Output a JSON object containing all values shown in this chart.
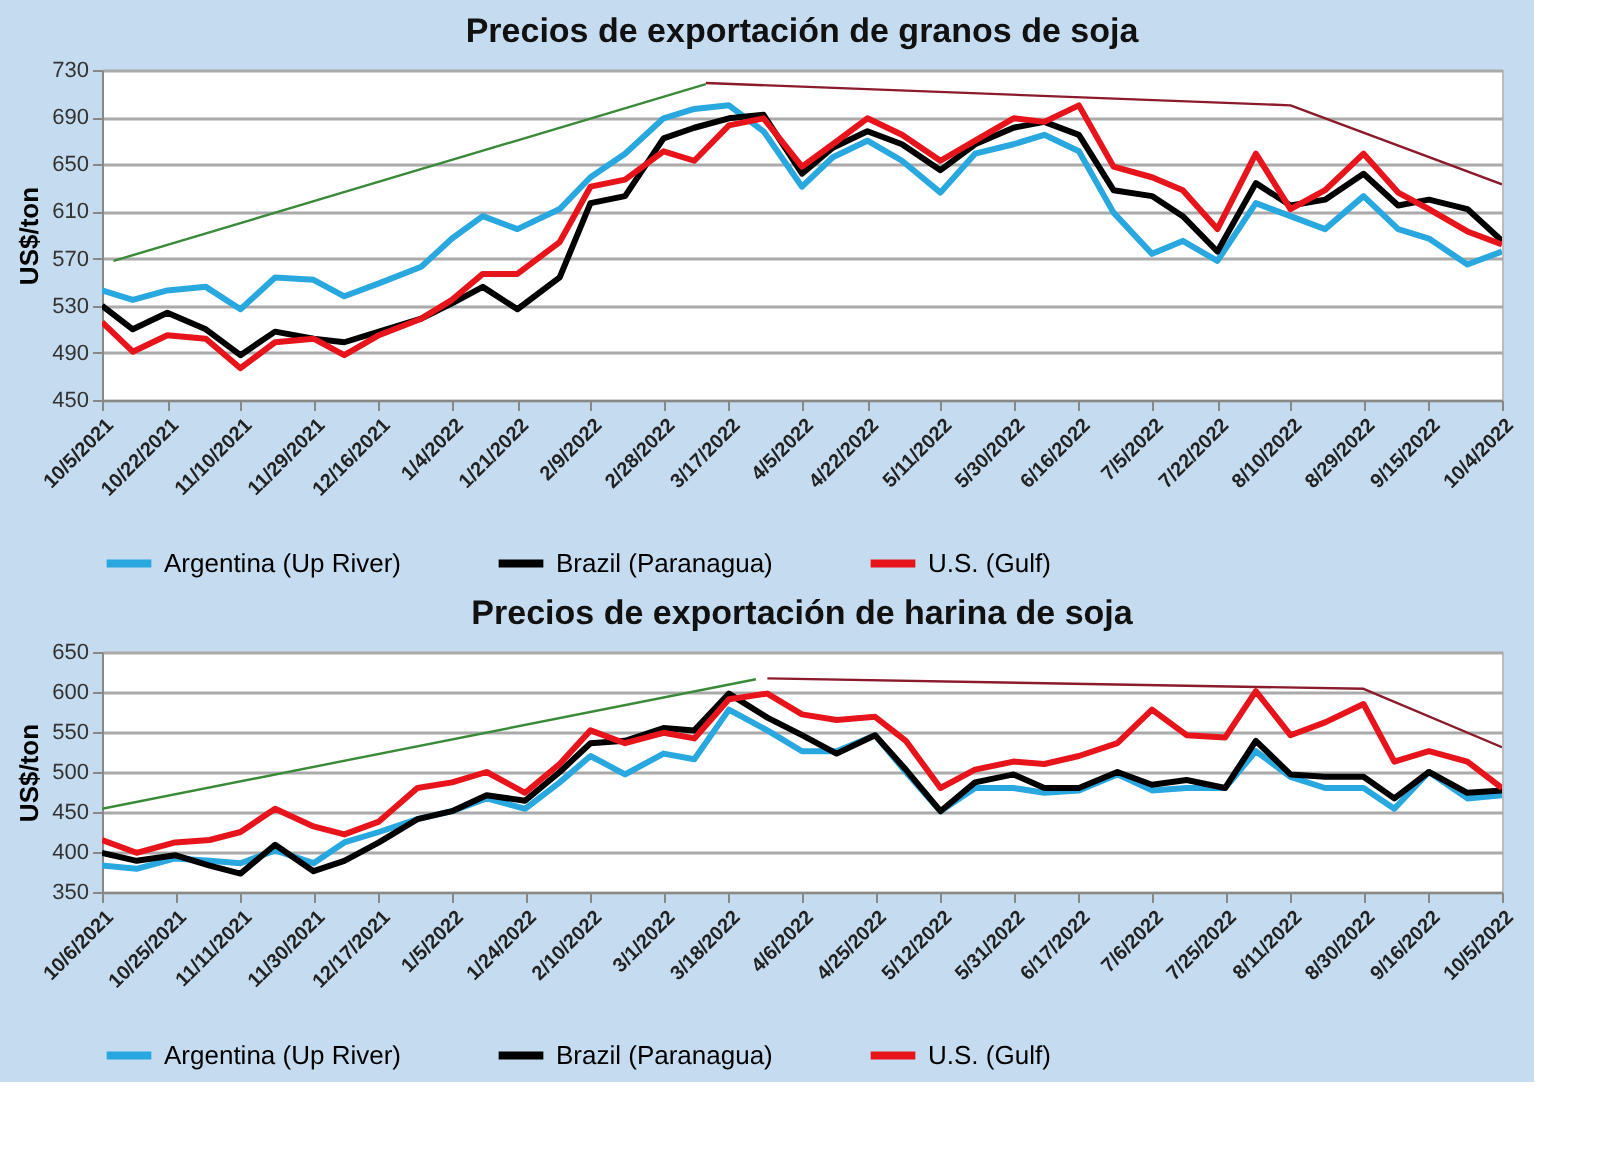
{
  "chart_data": [
    {
      "type": "line",
      "title": "Precios de exportación de granos de soja",
      "ylabel": "US$/ton",
      "xlim": [
        "2021-10-05",
        "2022-10-04"
      ],
      "ylim": [
        450,
        730
      ],
      "yticks": [
        450,
        490,
        530,
        570,
        610,
        650,
        690,
        730
      ],
      "xticks": [
        {
          "value": "2021-10-05",
          "label": "10/5/2021"
        },
        {
          "value": "2021-10-22",
          "label": "10/22/2021"
        },
        {
          "value": "2021-11-10",
          "label": "11/10/2021"
        },
        {
          "value": "2021-11-29",
          "label": "11/29/2021"
        },
        {
          "value": "2021-12-16",
          "label": "12/16/2021"
        },
        {
          "value": "2022-01-04",
          "label": "1/4/2022"
        },
        {
          "value": "2022-01-21",
          "label": "1/21/2022"
        },
        {
          "value": "2022-02-09",
          "label": "2/9/2022"
        },
        {
          "value": "2022-02-28",
          "label": "2/28/2022"
        },
        {
          "value": "2022-03-17",
          "label": "3/17/2022"
        },
        {
          "value": "2022-04-05",
          "label": "4/5/2022"
        },
        {
          "value": "2022-04-22",
          "label": "4/22/2022"
        },
        {
          "value": "2022-05-11",
          "label": "5/11/2022"
        },
        {
          "value": "2022-05-30",
          "label": "5/30/2022"
        },
        {
          "value": "2022-06-16",
          "label": "6/16/2022"
        },
        {
          "value": "2022-07-05",
          "label": "7/5/2022"
        },
        {
          "value": "2022-07-22",
          "label": "7/22/2022"
        },
        {
          "value": "2022-08-10",
          "label": "8/10/2022"
        },
        {
          "value": "2022-08-29",
          "label": "8/29/2022"
        },
        {
          "value": "2022-09-15",
          "label": "9/15/2022"
        },
        {
          "value": "2022-10-04",
          "label": "10/4/2022"
        }
      ],
      "grid": "y",
      "legend": "bottom",
      "series": [
        {
          "name": "Argentina (Up River)",
          "color": "#29a8e0",
          "x": [
            "2021-10-05",
            "2021-10-13",
            "2021-10-22",
            "2021-11-01",
            "2021-11-10",
            "2021-11-19",
            "2021-11-29",
            "2021-12-07",
            "2021-12-16",
            "2021-12-27",
            "2022-01-04",
            "2022-01-12",
            "2022-01-21",
            "2022-02-01",
            "2022-02-09",
            "2022-02-18",
            "2022-02-28",
            "2022-03-08",
            "2022-03-17",
            "2022-03-26",
            "2022-04-05",
            "2022-04-13",
            "2022-04-22",
            "2022-05-01",
            "2022-05-11",
            "2022-05-20",
            "2022-05-30",
            "2022-06-07",
            "2022-06-16",
            "2022-06-25",
            "2022-07-05",
            "2022-07-13",
            "2022-07-22",
            "2022-08-01",
            "2022-08-10",
            "2022-08-19",
            "2022-08-29",
            "2022-09-07",
            "2022-09-15",
            "2022-09-25",
            "2022-10-04"
          ],
          "values": [
            543,
            535,
            543,
            546,
            527,
            554,
            552,
            538,
            549,
            563,
            587,
            606,
            595,
            612,
            639,
            659,
            689,
            697,
            700,
            678,
            631,
            656,
            670,
            653,
            626,
            659,
            667,
            675,
            661,
            609,
            574,
            585,
            568,
            617,
            606,
            595,
            623,
            595,
            587,
            565,
            576
          ]
        },
        {
          "name": "Brazil (Paranagua)",
          "color": "#000000",
          "x": [
            "2021-10-05",
            "2021-10-13",
            "2021-10-22",
            "2021-11-01",
            "2021-11-10",
            "2021-11-19",
            "2021-11-29",
            "2021-12-07",
            "2021-12-16",
            "2021-12-27",
            "2022-01-04",
            "2022-01-12",
            "2022-01-21",
            "2022-02-01",
            "2022-02-09",
            "2022-02-18",
            "2022-02-28",
            "2022-03-08",
            "2022-03-17",
            "2022-03-26",
            "2022-04-05",
            "2022-04-13",
            "2022-04-22",
            "2022-05-01",
            "2022-05-11",
            "2022-05-20",
            "2022-05-30",
            "2022-06-07",
            "2022-06-16",
            "2022-06-25",
            "2022-07-05",
            "2022-07-13",
            "2022-07-22",
            "2022-08-01",
            "2022-08-10",
            "2022-08-19",
            "2022-08-29",
            "2022-09-07",
            "2022-09-15",
            "2022-09-25",
            "2022-10-04"
          ],
          "values": [
            530,
            510,
            524,
            510,
            488,
            508,
            502,
            499,
            508,
            519,
            532,
            546,
            527,
            554,
            617,
            623,
            672,
            681,
            689,
            692,
            642,
            664,
            678,
            667,
            645,
            667,
            681,
            686,
            675,
            628,
            623,
            606,
            576,
            634,
            615,
            620,
            642,
            615,
            620,
            612,
            585
          ]
        },
        {
          "name": "U.S. (Gulf)",
          "color": "#e8141c",
          "x": [
            "2021-10-05",
            "2021-10-13",
            "2021-10-22",
            "2021-11-01",
            "2021-11-10",
            "2021-11-19",
            "2021-11-29",
            "2021-12-07",
            "2021-12-16",
            "2021-12-27",
            "2022-01-04",
            "2022-01-12",
            "2022-01-21",
            "2022-02-01",
            "2022-02-09",
            "2022-02-18",
            "2022-02-28",
            "2022-03-08",
            "2022-03-17",
            "2022-03-26",
            "2022-04-05",
            "2022-04-13",
            "2022-04-22",
            "2022-05-01",
            "2022-05-11",
            "2022-05-20",
            "2022-05-30",
            "2022-06-07",
            "2022-06-16",
            "2022-06-25",
            "2022-07-05",
            "2022-07-13",
            "2022-07-22",
            "2022-08-01",
            "2022-08-10",
            "2022-08-19",
            "2022-08-29",
            "2022-09-07",
            "2022-09-15",
            "2022-09-25",
            "2022-10-04"
          ],
          "values": [
            516,
            491,
            505,
            502,
            477,
            499,
            502,
            488,
            505,
            519,
            535,
            557,
            557,
            584,
            631,
            637,
            661,
            653,
            683,
            689,
            648,
            667,
            689,
            675,
            653,
            670,
            689,
            686,
            700,
            648,
            639,
            628,
            595,
            659,
            612,
            628,
            659,
            626,
            612,
            593,
            582
          ]
        },
        {
          "type": "line",
          "color": "#3a8a3a",
          "x": [
            "2021-10-08",
            "2022-03-11"
          ],
          "values": [
            568,
            718
          ]
        },
        {
          "type": "line",
          "color": "#8b1a2b",
          "x": [
            "2022-03-11",
            "2022-08-10",
            "2022-10-04"
          ],
          "values": [
            719,
            700,
            633
          ]
        }
      ]
    },
    {
      "type": "line",
      "title": "Precios de exportación de harina de soja",
      "ylabel": "US$/ton",
      "xlim": [
        "2021-10-06",
        "2022-10-05"
      ],
      "ylim": [
        350,
        650
      ],
      "yticks": [
        350,
        400,
        450,
        500,
        550,
        600,
        650
      ],
      "xticks": [
        {
          "value": "2021-10-06",
          "label": "10/6/2021"
        },
        {
          "value": "2021-10-25",
          "label": "10/25/2021"
        },
        {
          "value": "2021-11-11",
          "label": "11/11/2021"
        },
        {
          "value": "2021-11-30",
          "label": "11/30/2021"
        },
        {
          "value": "2021-12-17",
          "label": "12/17/2021"
        },
        {
          "value": "2022-01-05",
          "label": "1/5/2022"
        },
        {
          "value": "2022-01-24",
          "label": "1/24/2022"
        },
        {
          "value": "2022-02-10",
          "label": "2/10/2022"
        },
        {
          "value": "2022-03-01",
          "label": "3/1/2022"
        },
        {
          "value": "2022-03-18",
          "label": "3/18/2022"
        },
        {
          "value": "2022-04-06",
          "label": "4/6/2022"
        },
        {
          "value": "2022-04-25",
          "label": "4/25/2022"
        },
        {
          "value": "2022-05-12",
          "label": "5/12/2022"
        },
        {
          "value": "2022-05-31",
          "label": "5/31/2022"
        },
        {
          "value": "2022-06-17",
          "label": "6/17/2022"
        },
        {
          "value": "2022-07-06",
          "label": "7/6/2022"
        },
        {
          "value": "2022-07-25",
          "label": "7/25/2022"
        },
        {
          "value": "2022-08-11",
          "label": "8/11/2022"
        },
        {
          "value": "2022-08-30",
          "label": "8/30/2022"
        },
        {
          "value": "2022-09-16",
          "label": "9/16/2022"
        },
        {
          "value": "2022-10-05",
          "label": "10/5/2022"
        }
      ],
      "grid": "y",
      "legend": "bottom",
      "series": [
        {
          "name": "Argentina (Up River)",
          "color": "#29a8e0",
          "x": [
            "2021-10-06",
            "2021-10-15",
            "2021-10-25",
            "2021-11-03",
            "2021-11-11",
            "2021-11-20",
            "2021-11-30",
            "2021-12-08",
            "2021-12-17",
            "2021-12-27",
            "2022-01-05",
            "2022-01-14",
            "2022-01-24",
            "2022-02-02",
            "2022-02-10",
            "2022-02-19",
            "2022-03-01",
            "2022-03-09",
            "2022-03-18",
            "2022-03-28",
            "2022-04-06",
            "2022-04-15",
            "2022-04-25",
            "2022-05-03",
            "2022-05-12",
            "2022-05-21",
            "2022-05-31",
            "2022-06-08",
            "2022-06-17",
            "2022-06-27",
            "2022-07-06",
            "2022-07-15",
            "2022-07-25",
            "2022-08-02",
            "2022-08-11",
            "2022-08-20",
            "2022-08-30",
            "2022-09-07",
            "2022-09-16",
            "2022-09-26",
            "2022-10-05"
          ],
          "values": [
            383,
            379,
            392,
            389,
            386,
            402,
            386,
            412,
            425,
            441,
            451,
            467,
            454,
            487,
            520,
            497,
            523,
            516,
            578,
            552,
            526,
            526,
            546,
            500,
            451,
            480,
            480,
            474,
            477,
            497,
            477,
            480,
            480,
            526,
            494,
            480,
            480,
            454,
            500,
            467,
            471
          ]
        },
        {
          "name": "Brazil (Paranagua)",
          "color": "#000000",
          "x": [
            "2021-10-06",
            "2021-10-15",
            "2021-10-25",
            "2021-11-03",
            "2021-11-11",
            "2021-11-20",
            "2021-11-30",
            "2021-12-08",
            "2021-12-17",
            "2021-12-27",
            "2022-01-05",
            "2022-01-14",
            "2022-01-24",
            "2022-02-02",
            "2022-02-10",
            "2022-02-19",
            "2022-03-01",
            "2022-03-09",
            "2022-03-18",
            "2022-03-28",
            "2022-04-06",
            "2022-04-15",
            "2022-04-25",
            "2022-05-03",
            "2022-05-12",
            "2022-05-21",
            "2022-05-31",
            "2022-06-08",
            "2022-06-17",
            "2022-06-27",
            "2022-07-06",
            "2022-07-15",
            "2022-07-25",
            "2022-08-02",
            "2022-08-11",
            "2022-08-20",
            "2022-08-30",
            "2022-09-07",
            "2022-09-16",
            "2022-09-26",
            "2022-10-05"
          ],
          "values": [
            399,
            389,
            396,
            383,
            373,
            409,
            376,
            389,
            412,
            441,
            451,
            471,
            464,
            500,
            536,
            539,
            555,
            552,
            598,
            568,
            546,
            523,
            546,
            503,
            451,
            487,
            497,
            480,
            480,
            500,
            484,
            490,
            480,
            539,
            497,
            494,
            494,
            467,
            500,
            474,
            477
          ]
        },
        {
          "name": "U.S. (Gulf)",
          "color": "#e8141c",
          "x": [
            "2021-10-06",
            "2021-10-15",
            "2021-10-25",
            "2021-11-03",
            "2021-11-11",
            "2021-11-20",
            "2021-11-30",
            "2021-12-08",
            "2021-12-17",
            "2021-12-27",
            "2022-01-05",
            "2022-01-14",
            "2022-01-24",
            "2022-02-02",
            "2022-02-10",
            "2022-02-19",
            "2022-03-01",
            "2022-03-09",
            "2022-03-18",
            "2022-03-28",
            "2022-04-06",
            "2022-04-15",
            "2022-04-25",
            "2022-05-03",
            "2022-05-12",
            "2022-05-21",
            "2022-05-31",
            "2022-06-08",
            "2022-06-17",
            "2022-06-27",
            "2022-07-06",
            "2022-07-15",
            "2022-07-25",
            "2022-08-02",
            "2022-08-11",
            "2022-08-20",
            "2022-08-30",
            "2022-09-07",
            "2022-09-16",
            "2022-09-26",
            "2022-10-05"
          ],
          "values": [
            415,
            399,
            412,
            415,
            425,
            454,
            432,
            422,
            438,
            480,
            487,
            500,
            474,
            510,
            552,
            536,
            549,
            542,
            591,
            598,
            572,
            565,
            569,
            539,
            480,
            503,
            513,
            510,
            520,
            536,
            578,
            546,
            543,
            601,
            546,
            562,
            585,
            513,
            526,
            513,
            480
          ]
        },
        {
          "type": "line",
          "color": "#3a8a3a",
          "x": [
            "2021-10-06",
            "2022-03-25"
          ],
          "values": [
            454,
            616
          ]
        },
        {
          "type": "line",
          "color": "#8b1a2b",
          "x": [
            "2022-03-28",
            "2022-08-30",
            "2022-10-05"
          ],
          "values": [
            617,
            604,
            531
          ]
        }
      ]
    }
  ]
}
